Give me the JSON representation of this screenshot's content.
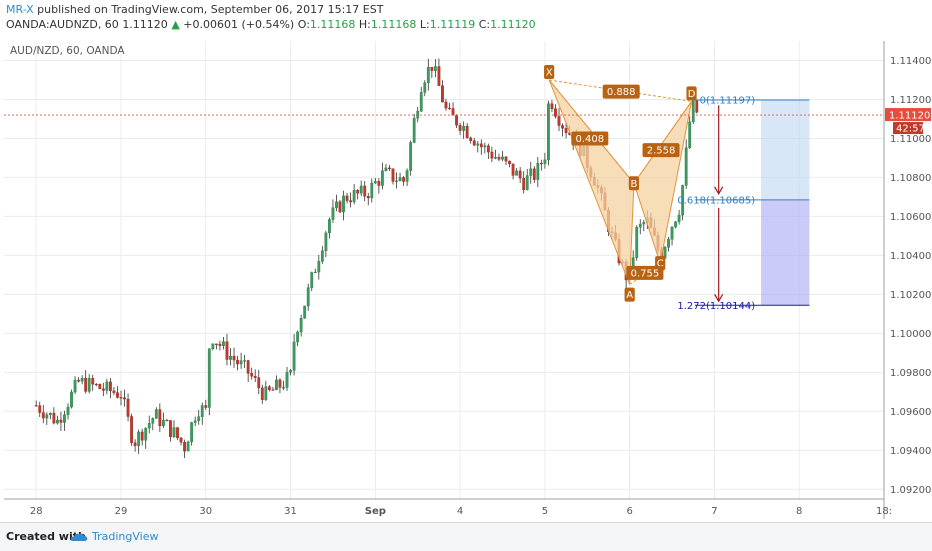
{
  "header": {
    "author": "MR-X",
    "published": "published on TradingView.com, September 06, 2017 15:17 EST",
    "symbol_line": "OANDA:AUDNZD, 60",
    "last": "1.11120",
    "change": "+0.00601 (+0.54%)",
    "o_label": "O:",
    "o_value": "1.11168",
    "h_label": "H:",
    "h_value": "1.11168",
    "l_label": "L:",
    "l_value": "1.11119",
    "c_label": "C:",
    "c_value": "1.11120"
  },
  "colors": {
    "up": "#3c9a5f",
    "down": "#c0392b",
    "wick": "#333333",
    "pattern_fill": "#f5d1a2",
    "pattern_stroke": "#e0953c",
    "label_bg": "#b86212",
    "fib": "#2f7fc1",
    "fib_dark": "#1a1aa6",
    "arrow": "#a0191e",
    "last_price": "#e74c3c",
    "grid": "#e9ecef"
  },
  "chart_data": {
    "type": "candlestick",
    "title": "AUD/NZD, 60, OANDA",
    "ylim": [
      1.0915,
      1.115
    ],
    "y_ticks": [
      "1.11400",
      "1.11200",
      "1.11000",
      "1.10800",
      "1.10600",
      "1.10400",
      "1.10200",
      "1.10000",
      "1.09800",
      "1.09600",
      "1.09400",
      "1.09200"
    ],
    "x_ticks": [
      {
        "label": "28",
        "t": 0
      },
      {
        "label": "29",
        "t": 1
      },
      {
        "label": "30",
        "t": 2
      },
      {
        "label": "31",
        "t": 3
      },
      {
        "label": "Sep",
        "t": 4
      },
      {
        "label": "4",
        "t": 5
      },
      {
        "label": "5",
        "t": 6
      },
      {
        "label": "6",
        "t": 7
      },
      {
        "label": "7",
        "t": 8
      },
      {
        "label": "8",
        "t": 9
      },
      {
        "label": "18:",
        "t": 10
      }
    ],
    "xlim": [
      -0.38,
      10.0
    ],
    "last_price": 1.1112,
    "last_price_label": "1.11120",
    "countdown": "42:57",
    "candles": [],
    "harmonic_points": [
      {
        "label": "X",
        "t": 6.05,
        "price": 1.113
      },
      {
        "label": "A",
        "t": 7.0,
        "price": 1.1025
      },
      {
        "label": "B",
        "t": 7.05,
        "price": 1.1077
      },
      {
        "label": "C",
        "t": 7.36,
        "price": 1.1036
      },
      {
        "label": "D",
        "t": 7.73,
        "price": 1.1119
      }
    ],
    "ratios": [
      {
        "text": "0.888",
        "t": 6.9,
        "price": 1.1124
      },
      {
        "text": "0.408",
        "t": 6.53,
        "price": 1.11
      },
      {
        "text": "0.755",
        "t": 7.18,
        "price": 1.1031
      },
      {
        "text": "2.558",
        "t": 7.37,
        "price": 1.1094
      }
    ],
    "fib_levels": [
      {
        "label": "0(1.11197)",
        "price": 1.11197
      },
      {
        "label": "0.618(1.10685)",
        "price": 1.10685
      },
      {
        "label": "1.272(1.10144)",
        "price": 1.10144
      }
    ],
    "fib_box": {
      "t_start": 8.55,
      "t_end": 9.12
    }
  },
  "footer": {
    "created": "Created with",
    "brand": "TradingView"
  }
}
